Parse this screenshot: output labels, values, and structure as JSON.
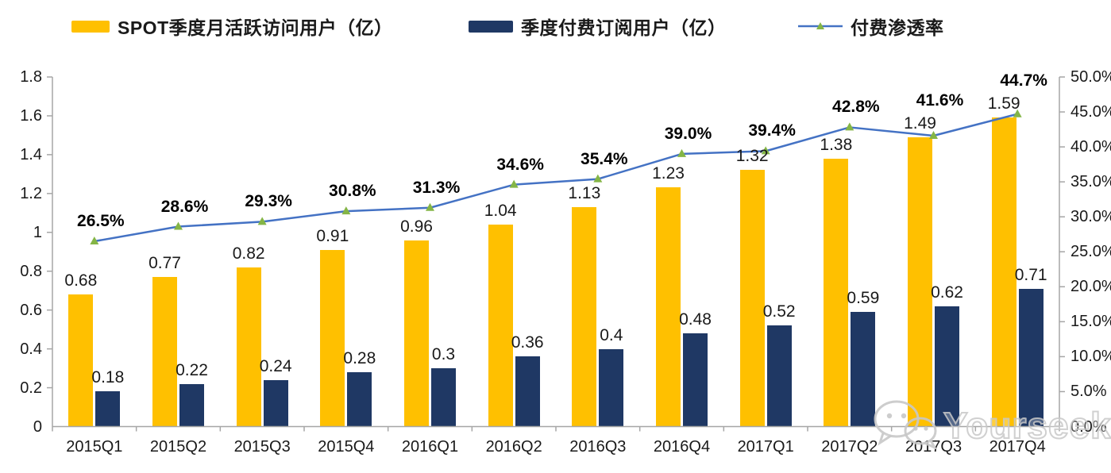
{
  "chart_data": {
    "type": "bar",
    "subtype": "grouped-bars-with-line-overlay",
    "title": "",
    "categories": [
      "2015Q1",
      "2015Q2",
      "2015Q3",
      "2015Q4",
      "2016Q1",
      "2016Q2",
      "2016Q3",
      "2016Q4",
      "2017Q1",
      "2017Q2",
      "2017Q3",
      "2017Q4"
    ],
    "series": [
      {
        "name": "SPOT季度月活跃访问用户（亿）",
        "type": "bar",
        "color": "#FFC000",
        "axis": "left",
        "values": [
          0.68,
          0.77,
          0.82,
          0.91,
          0.96,
          1.04,
          1.13,
          1.23,
          1.32,
          1.38,
          1.49,
          1.59
        ],
        "labels": [
          "0.68",
          "0.77",
          "0.82",
          "0.91",
          "0.96",
          "1.04",
          "1.13",
          "1.23",
          "1.32",
          "1.38",
          "1.49",
          "1.59"
        ]
      },
      {
        "name": "季度付费订阅用户（亿）",
        "type": "bar",
        "color": "#1F3864",
        "axis": "left",
        "values": [
          0.18,
          0.22,
          0.24,
          0.28,
          0.3,
          0.36,
          0.4,
          0.48,
          0.52,
          0.59,
          0.62,
          0.71
        ],
        "labels": [
          "0.18",
          "0.22",
          "0.24",
          "0.28",
          "0.3",
          "0.36",
          "0.4",
          "0.48",
          "0.52",
          "0.59",
          "0.62",
          "0.71"
        ]
      },
      {
        "name": "付费渗透率",
        "type": "line",
        "color": "#4472C4",
        "marker": "triangle",
        "marker_color": "#84B546",
        "axis": "right",
        "values": [
          26.5,
          28.6,
          29.3,
          30.8,
          31.3,
          34.6,
          35.4,
          39.0,
          39.4,
          42.8,
          41.6,
          44.7
        ],
        "labels": [
          "26.5%",
          "28.6%",
          "29.3%",
          "30.8%",
          "31.3%",
          "34.6%",
          "35.4%",
          "39.0%",
          "39.4%",
          "42.8%",
          "41.6%",
          "44.7%"
        ]
      }
    ],
    "left_axis": {
      "min": 0,
      "max": 1.8,
      "tick_values": [
        0,
        0.2,
        0.4,
        0.6,
        0.8,
        1,
        1.2,
        1.4,
        1.6,
        1.8
      ],
      "tick_labels": [
        "0",
        "0.2",
        "0.4",
        "0.6",
        "0.8",
        "1",
        "1.2",
        "1.4",
        "1.6",
        "1.8"
      ]
    },
    "right_axis": {
      "min": 0,
      "max": 50,
      "tick_values": [
        0,
        5,
        10,
        15,
        20,
        25,
        30,
        35,
        40,
        45,
        50
      ],
      "tick_labels": [
        "0.0%",
        "5.0%",
        "10.0%",
        "15.0%",
        "20.0%",
        "25.0%",
        "30.0%",
        "35.0%",
        "40.0%",
        "45.0%",
        "50.0%"
      ]
    },
    "grid": false,
    "legend_position": "top",
    "axis_color": "#A6A6A6"
  },
  "watermark": {
    "text": "Yourseeker",
    "icon": "wechat-icon"
  }
}
